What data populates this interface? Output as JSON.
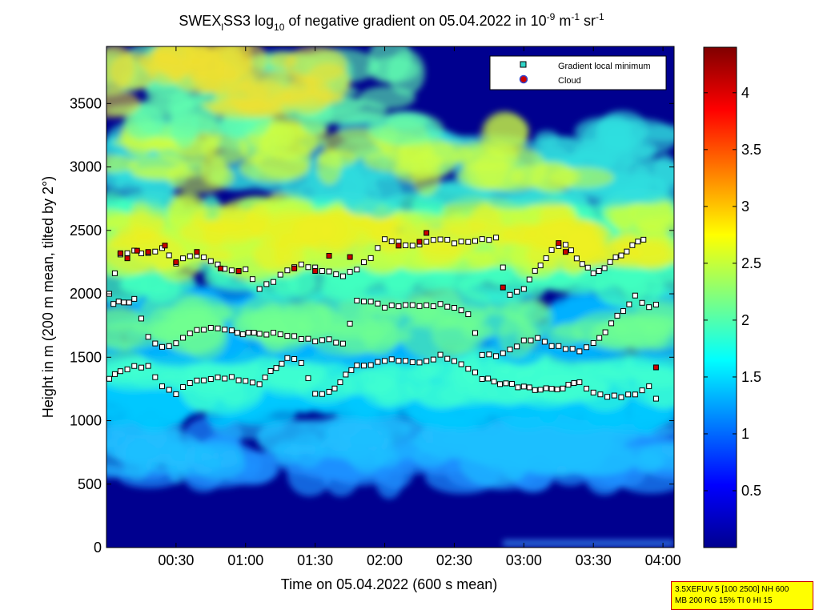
{
  "chart_data": {
    "type": "heatmap",
    "title": {
      "p1": "SWEX",
      "p1_sub": "l",
      "p2": "SS3 log",
      "p2_sub": "10",
      "p3": " of negative gradient on 05.04.2022 in 10",
      "p3_sup": "-9",
      "p4": " m",
      "p4_sup": "-1",
      "p5": " sr",
      "p5_sup": "-1"
    },
    "xlabel": "Time on 05.04.2022 (600 s mean)",
    "ylabel": "Height in m (200 m mean, tilted by 2°)",
    "xlim_hours": [
      0.0,
      4.08
    ],
    "ylim": [
      0,
      3950
    ],
    "xticks": [
      {
        "value": 0.5,
        "label": "00:30"
      },
      {
        "value": 1.0,
        "label": "01:00"
      },
      {
        "value": 1.5,
        "label": "01:30"
      },
      {
        "value": 2.0,
        "label": "02:00"
      },
      {
        "value": 2.5,
        "label": "02:30"
      },
      {
        "value": 3.0,
        "label": "03:00"
      },
      {
        "value": 3.5,
        "label": "03:30"
      },
      {
        "value": 4.0,
        "label": "04:00"
      }
    ],
    "yticks": [
      0,
      500,
      1000,
      1500,
      2000,
      2500,
      3000,
      3500
    ],
    "colorbar": {
      "range": [
        0,
        4.4
      ],
      "ticks": [
        "0.5",
        "1",
        "1.5",
        "2",
        "2.5",
        "3",
        "3.5",
        "4"
      ],
      "colormap": "jet"
    },
    "legend": {
      "placement": "top-right",
      "entries": [
        {
          "label": "Gradient local minimum",
          "marker": "square",
          "color": "#30d5c8"
        },
        {
          "label": "Cloud",
          "marker": "circle",
          "color": "#cc0000"
        }
      ]
    },
    "gradient_minima_layers": [
      {
        "name": "upper",
        "points": [
          [
            0.02,
            2000
          ],
          [
            0.1,
            2300
          ],
          [
            0.2,
            2330
          ],
          [
            0.3,
            2320
          ],
          [
            0.4,
            2370
          ],
          [
            0.5,
            2250
          ],
          [
            0.6,
            2300
          ],
          [
            0.7,
            2280
          ],
          [
            0.8,
            2220
          ],
          [
            0.9,
            2180
          ],
          [
            1.0,
            2200
          ],
          [
            1.1,
            2050
          ],
          [
            1.2,
            2100
          ],
          [
            1.3,
            2180
          ],
          [
            1.4,
            2220
          ],
          [
            1.5,
            2200
          ],
          [
            1.6,
            2180
          ],
          [
            1.7,
            2150
          ],
          [
            1.8,
            2200
          ],
          [
            1.9,
            2280
          ],
          [
            2.0,
            2420
          ],
          [
            2.1,
            2400
          ],
          [
            2.2,
            2380
          ],
          [
            2.3,
            2420
          ],
          [
            2.4,
            2440
          ],
          [
            2.5,
            2400
          ],
          [
            2.6,
            2400
          ],
          [
            2.7,
            2420
          ],
          [
            2.8,
            2440
          ],
          [
            2.9,
            2000
          ],
          [
            3.0,
            2050
          ],
          [
            3.2,
            2350
          ],
          [
            3.3,
            2380
          ],
          [
            3.5,
            2150
          ],
          [
            3.9,
            2470
          ]
        ]
      },
      {
        "name": "middle",
        "points": [
          [
            0.05,
            1920
          ],
          [
            0.2,
            1950
          ],
          [
            0.3,
            1650
          ],
          [
            0.4,
            1580
          ],
          [
            0.5,
            1620
          ],
          [
            0.6,
            1700
          ],
          [
            0.7,
            1720
          ],
          [
            0.8,
            1720
          ],
          [
            0.9,
            1700
          ],
          [
            1.1,
            1680
          ],
          [
            1.2,
            1700
          ],
          [
            1.3,
            1680
          ],
          [
            1.4,
            1650
          ],
          [
            1.5,
            1620
          ],
          [
            1.6,
            1630
          ],
          [
            1.7,
            1600
          ],
          [
            1.8,
            1950
          ],
          [
            1.9,
            1950
          ],
          [
            2.0,
            1900
          ],
          [
            2.1,
            1900
          ],
          [
            2.2,
            1900
          ],
          [
            2.3,
            1900
          ],
          [
            2.4,
            1920
          ],
          [
            2.5,
            1900
          ],
          [
            2.6,
            1850
          ],
          [
            2.7,
            1520
          ],
          [
            2.8,
            1500
          ],
          [
            2.9,
            1550
          ],
          [
            3.0,
            1630
          ],
          [
            3.1,
            1660
          ],
          [
            3.2,
            1600
          ],
          [
            3.3,
            1570
          ],
          [
            3.4,
            1540
          ],
          [
            3.5,
            1600
          ],
          [
            3.8,
            1980
          ],
          [
            3.9,
            1900
          ],
          [
            4.0,
            1950
          ]
        ]
      },
      {
        "name": "lower",
        "points": [
          [
            0.02,
            1330
          ],
          [
            0.1,
            1380
          ],
          [
            0.2,
            1420
          ],
          [
            0.3,
            1430
          ],
          [
            0.4,
            1280
          ],
          [
            0.5,
            1220
          ],
          [
            0.6,
            1300
          ],
          [
            0.7,
            1310
          ],
          [
            0.8,
            1330
          ],
          [
            0.9,
            1340
          ],
          [
            1.0,
            1320
          ],
          [
            1.1,
            1300
          ],
          [
            1.3,
            1500
          ],
          [
            1.4,
            1450
          ],
          [
            1.5,
            1200
          ],
          [
            1.6,
            1220
          ],
          [
            1.8,
            1440
          ],
          [
            1.9,
            1450
          ],
          [
            2.0,
            1480
          ],
          [
            2.1,
            1470
          ],
          [
            2.2,
            1450
          ],
          [
            2.3,
            1460
          ],
          [
            2.4,
            1520
          ],
          [
            2.5,
            1480
          ],
          [
            2.6,
            1420
          ],
          [
            2.7,
            1330
          ],
          [
            3.0,
            1260
          ],
          [
            3.2,
            1240
          ],
          [
            3.4,
            1300
          ],
          [
            3.5,
            1230
          ],
          [
            3.6,
            1200
          ],
          [
            3.7,
            1190
          ],
          [
            3.8,
            1200
          ],
          [
            3.9,
            1260
          ],
          [
            4.0,
            1090
          ]
        ]
      }
    ],
    "cloud_points": [
      [
        0.1,
        2320
      ],
      [
        0.15,
        2280
      ],
      [
        0.22,
        2340
      ],
      [
        0.3,
        2330
      ],
      [
        0.42,
        2380
      ],
      [
        0.5,
        2250
      ],
      [
        0.65,
        2330
      ],
      [
        0.82,
        2200
      ],
      [
        0.95,
        2180
      ],
      [
        1.35,
        2200
      ],
      [
        1.5,
        2180
      ],
      [
        1.6,
        2300
      ],
      [
        1.75,
        2290
      ],
      [
        2.1,
        2380
      ],
      [
        2.25,
        2410
      ],
      [
        2.3,
        2480
      ],
      [
        2.85,
        2050
      ],
      [
        3.25,
        2400
      ],
      [
        3.3,
        2330
      ],
      [
        3.95,
        1420
      ]
    ]
  },
  "info_box": {
    "line1": "3.5XEFUV 5 [100 2500] NH 600",
    "line2": "MB 200 RG 15% TI 0 HI 15"
  }
}
